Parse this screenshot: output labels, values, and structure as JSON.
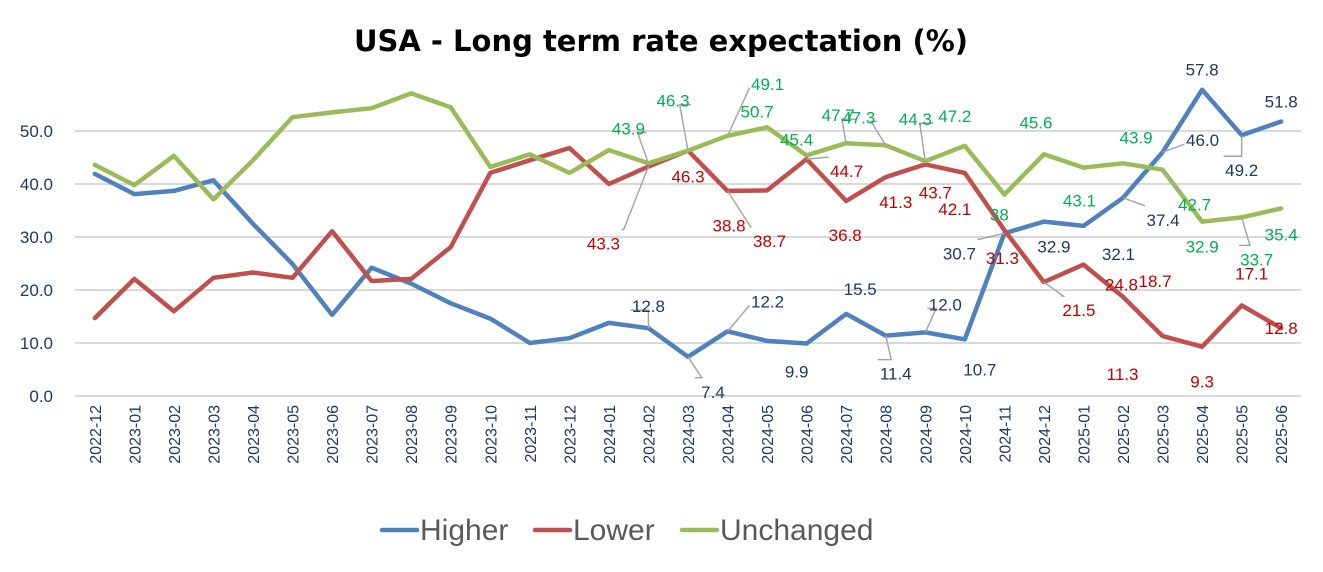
{
  "chart_data": {
    "type": "line",
    "title": "USA - Long term rate expectation (%)",
    "xlabel": "",
    "ylabel": "",
    "ylim": [
      0,
      60
    ],
    "yticks": [
      "0.0",
      "10.0",
      "20.0",
      "30.0",
      "40.0",
      "50.0"
    ],
    "ytick_values": [
      0,
      10,
      20,
      30,
      40,
      50
    ],
    "grid": true,
    "legend_position": "bottom",
    "categories": [
      "2022-12",
      "2023-01",
      "2023-02",
      "2023-03",
      "2023-04",
      "2023-05",
      "2023-06",
      "2023-07",
      "2023-08",
      "2023-09",
      "2023-10",
      "2023-11",
      "2023-12",
      "2024-01",
      "2024-02",
      "2024-03",
      "2024-04",
      "2024-05",
      "2024-06",
      "2024-07",
      "2024-08",
      "2024-09",
      "2024-10",
      "2024-11",
      "2024-12",
      "2025-01",
      "2025-02",
      "2025-03",
      "2025-04",
      "2025-05",
      "2025-06"
    ],
    "series": [
      {
        "name": "Higher",
        "color": "#4f81bd",
        "label_color": "#1f3864",
        "values": [
          41.9,
          38.1,
          38.7,
          40.7,
          32.5,
          24.9,
          15.3,
          24.2,
          21.2,
          17.5,
          14.6,
          10.0,
          10.9,
          13.8,
          12.8,
          7.4,
          12.2,
          10.4,
          9.9,
          15.5,
          11.4,
          12.0,
          10.7,
          30.7,
          32.9,
          32.1,
          37.4,
          46.0,
          57.8,
          49.2,
          51.8
        ],
        "labels": [
          {
            "index": 14,
            "text": "12.8"
          },
          {
            "index": 15,
            "text": "7.4"
          },
          {
            "index": 16,
            "text": "12.2"
          },
          {
            "index": 18,
            "text": "9.9"
          },
          {
            "index": 19,
            "text": "15.5"
          },
          {
            "index": 20,
            "text": "11.4"
          },
          {
            "index": 21,
            "text": "12.0"
          },
          {
            "index": 22,
            "text": "10.7"
          },
          {
            "index": 23,
            "text": "30.7"
          },
          {
            "index": 24,
            "text": "32.9"
          },
          {
            "index": 25,
            "text": "32.1"
          },
          {
            "index": 26,
            "text": "37.4"
          },
          {
            "index": 27,
            "text": "46.0"
          },
          {
            "index": 28,
            "text": "57.8"
          },
          {
            "index": 29,
            "text": "49.2"
          },
          {
            "index": 30,
            "text": "51.8"
          }
        ]
      },
      {
        "name": "Lower",
        "color": "#c0504d",
        "label_color": "#c00000",
        "values": [
          14.7,
          22.1,
          16.0,
          22.3,
          23.3,
          22.3,
          31.1,
          21.7,
          22.1,
          28.1,
          42.1,
          44.5,
          46.8,
          40.0,
          43.3,
          46.3,
          38.7,
          38.8,
          44.7,
          36.8,
          41.3,
          43.7,
          42.1,
          31.3,
          21.5,
          24.8,
          18.7,
          11.3,
          9.3,
          17.1,
          12.8
        ],
        "labels": [
          {
            "index": 14,
            "text": "43.3"
          },
          {
            "index": 15,
            "text": "46.3"
          },
          {
            "index": 16,
            "text": "38.7"
          },
          {
            "index": 17,
            "text": "38.8"
          },
          {
            "index": 18,
            "text": "44.7"
          },
          {
            "index": 19,
            "text": "36.8"
          },
          {
            "index": 20,
            "text": "41.3"
          },
          {
            "index": 21,
            "text": "43.7"
          },
          {
            "index": 22,
            "text": "42.1"
          },
          {
            "index": 23,
            "text": "31.3"
          },
          {
            "index": 24,
            "text": "21.5"
          },
          {
            "index": 25,
            "text": "24.8"
          },
          {
            "index": 26,
            "text": "18.7"
          },
          {
            "index": 27,
            "text": "11.3"
          },
          {
            "index": 28,
            "text": "9.3"
          },
          {
            "index": 29,
            "text": "17.1"
          },
          {
            "index": 30,
            "text": "12.8"
          }
        ]
      },
      {
        "name": "Unchanged",
        "color": "#9bbb59",
        "label_color": "#00b050",
        "values": [
          43.6,
          39.8,
          45.3,
          37.1,
          44.5,
          52.6,
          53.5,
          54.3,
          57.1,
          54.5,
          43.2,
          45.6,
          42.1,
          46.4,
          43.9,
          46.3,
          49.1,
          50.7,
          45.4,
          47.7,
          47.3,
          44.3,
          47.2,
          38.0,
          45.6,
          43.1,
          43.9,
          42.7,
          32.9,
          33.7,
          35.4
        ],
        "labels": [
          {
            "index": 14,
            "text": "43.9"
          },
          {
            "index": 15,
            "text": "46.3"
          },
          {
            "index": 16,
            "text": "49.1"
          },
          {
            "index": 17,
            "text": "50.7"
          },
          {
            "index": 18,
            "text": "45.4"
          },
          {
            "index": 19,
            "text": "47.7"
          },
          {
            "index": 20,
            "text": "47.3"
          },
          {
            "index": 21,
            "text": "44.3"
          },
          {
            "index": 22,
            "text": "47.2"
          },
          {
            "index": 23,
            "text": "38"
          },
          {
            "index": 24,
            "text": "45.6"
          },
          {
            "index": 25,
            "text": "43.1"
          },
          {
            "index": 26,
            "text": "43.9"
          },
          {
            "index": 27,
            "text": "42.7"
          },
          {
            "index": 28,
            "text": "32.9"
          },
          {
            "index": 29,
            "text": "33.7"
          },
          {
            "index": 30,
            "text": "35.4"
          }
        ]
      }
    ]
  }
}
